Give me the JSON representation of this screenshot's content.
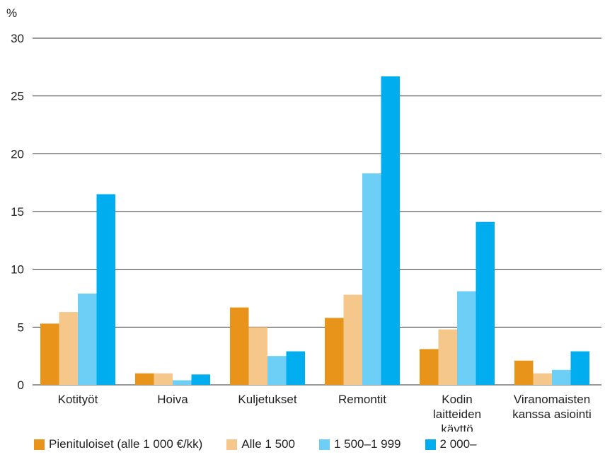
{
  "chart_data": {
    "type": "bar",
    "unit_label": "%",
    "ylim": [
      0,
      30
    ],
    "yticks": [
      0,
      5,
      10,
      15,
      20,
      25,
      30
    ],
    "grid": true,
    "legend_position": "bottom",
    "categories": [
      [
        "Kotityöt"
      ],
      [
        "Hoiva"
      ],
      [
        "Kuljetukset"
      ],
      [
        "Remontit"
      ],
      [
        "Kodin",
        "laitteiden",
        "käyttö"
      ],
      [
        "Viranomaisten",
        "kanssa asiointi"
      ]
    ],
    "series": [
      {
        "name": "Pienituloiset (alle 1 000 €/kk)",
        "color": "#E8941A",
        "values": [
          5.3,
          1.0,
          6.7,
          5.8,
          3.1,
          2.1
        ]
      },
      {
        "name": "Alle 1 500",
        "color": "#F5C78B",
        "values": [
          6.3,
          1.0,
          5.0,
          7.8,
          4.8,
          1.0
        ]
      },
      {
        "name": "1 500–1 999",
        "color": "#6DCFF6",
        "values": [
          7.9,
          0.4,
          2.5,
          18.3,
          8.1,
          1.3
        ]
      },
      {
        "name": "2 000–",
        "color": "#00AEEF",
        "values": [
          16.5,
          0.9,
          2.9,
          26.7,
          14.1,
          2.9
        ]
      }
    ]
  }
}
